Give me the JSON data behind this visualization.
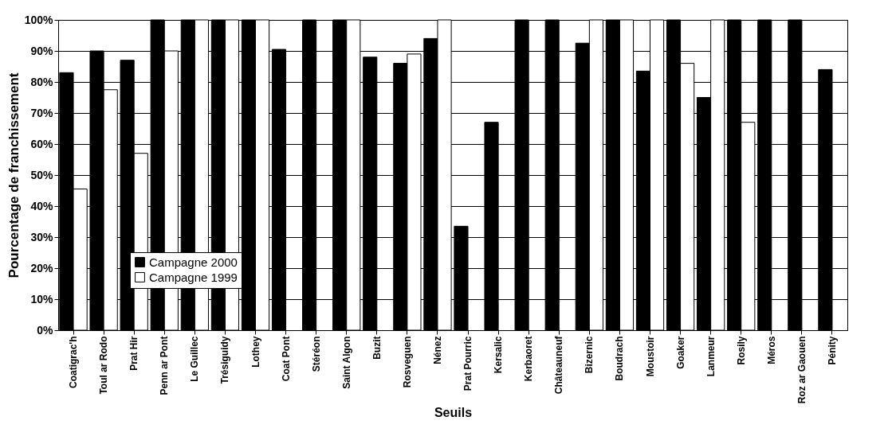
{
  "chart_data": {
    "type": "bar",
    "xlabel": "Seuils",
    "ylabel": "Pourcentage de franchissement",
    "categories": [
      "Coatigrac'h",
      "Toul ar Rodo",
      "Prat Hir",
      "Penn ar Pont",
      "Le Guillec",
      "Trésiguidy",
      "Lothey",
      "Coat Pont",
      "Stéréon",
      "Saint Algon",
      "Buzit",
      "Rosveguen",
      "Nénez",
      "Prat Pourric",
      "Kersalic",
      "Kerbaoret",
      "Châteauneuf",
      "Bizernic",
      "Boudrach",
      "Moustoir",
      "Goaker",
      "Lanmeur",
      "Rosily",
      "Méros",
      "Roz ar Gaouen",
      "Pénity"
    ],
    "series": [
      {
        "name": "Campagne 2000",
        "color": "#000000",
        "values": [
          83,
          90,
          87,
          100,
          100,
          100,
          100,
          90.5,
          100,
          100,
          88,
          86,
          94,
          33.5,
          67,
          100,
          100,
          92.5,
          100,
          83.5,
          100,
          75,
          100,
          100,
          100,
          84
        ]
      },
      {
        "name": "Campagne 1999",
        "color": "#ffffff",
        "values": [
          45.5,
          77.5,
          57,
          90,
          100,
          100,
          100,
          null,
          null,
          100,
          null,
          89,
          100,
          null,
          null,
          null,
          null,
          100,
          100,
          100,
          86,
          100,
          67,
          null,
          null,
          null
        ]
      }
    ],
    "ylim": [
      0,
      100
    ],
    "yticks": [
      {
        "value": 0,
        "label": "0%"
      },
      {
        "value": 10,
        "label": "10%"
      },
      {
        "value": 20,
        "label": "20%"
      },
      {
        "value": 30,
        "label": "30%"
      },
      {
        "value": 40,
        "label": "40%"
      },
      {
        "value": 50,
        "label": "50%"
      },
      {
        "value": 60,
        "label": "60%"
      },
      {
        "value": 70,
        "label": "70%"
      },
      {
        "value": 80,
        "label": "80%"
      },
      {
        "value": 90,
        "label": "90%"
      },
      {
        "value": 100,
        "label": "100%"
      }
    ],
    "grid": "y",
    "legend": "bottom left"
  }
}
